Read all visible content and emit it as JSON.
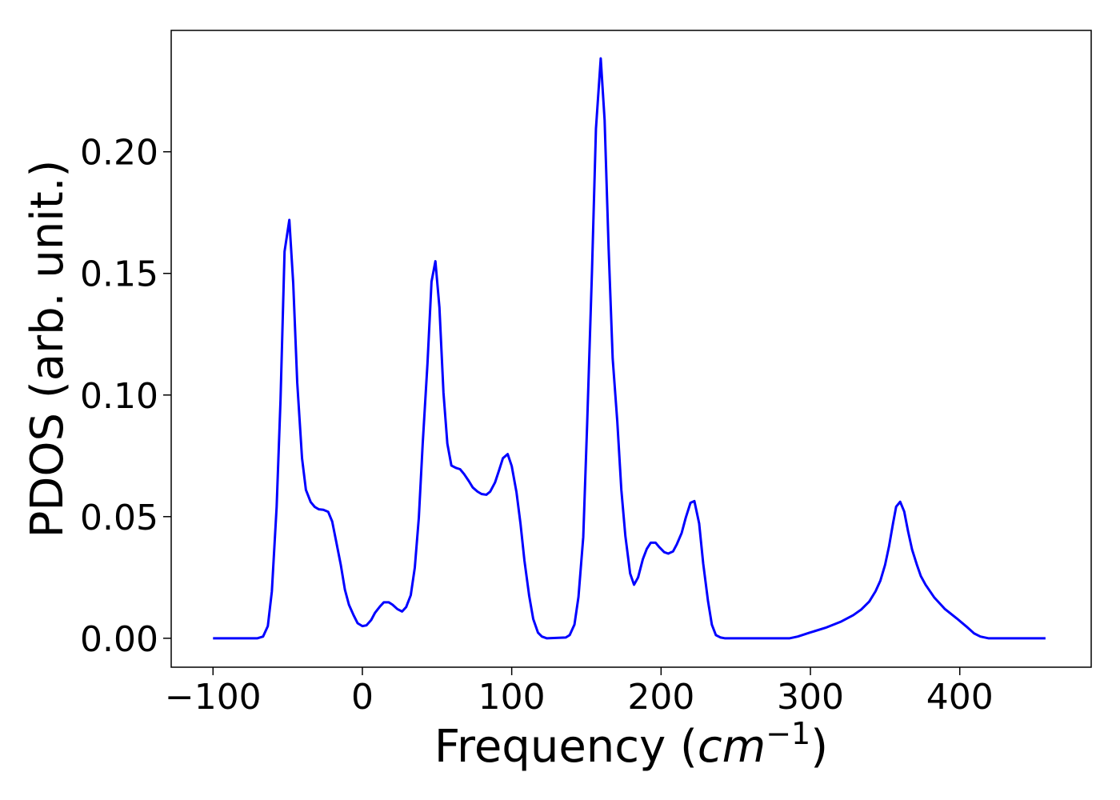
{
  "chart_data": {
    "type": "line",
    "xlabel": [
      "Frequency (",
      "cm",
      "−1",
      ")"
    ],
    "ylabel": "PDOS (arb. unit.)",
    "xlim": [
      -128,
      488
    ],
    "ylim": [
      -0.0119,
      0.2499
    ],
    "xticks": [
      {
        "value": -100,
        "label": "−100"
      },
      0,
      100,
      200,
      300,
      400
    ],
    "yticks": [
      {
        "value": 0,
        "label": "0.00"
      },
      {
        "value": 0.05,
        "label": "0.05"
      },
      {
        "value": 0.1,
        "label": "0.10"
      },
      {
        "value": 0.15,
        "label": "0.15"
      },
      {
        "value": 0.2,
        "label": "0.20"
      }
    ],
    "grid": false,
    "series": [
      {
        "color": "#0000ff",
        "x": [
          -100,
          -70.2,
          -66.5,
          -63.3,
          -60.6,
          -57.4,
          -54.8,
          -52.1,
          -48.9,
          -46.3,
          -43.6,
          -40.4,
          -37.8,
          -34.6,
          -31.9,
          -29.1,
          -26.1,
          -22.9,
          -20.2,
          -17.6,
          -14.4,
          -11.7,
          -9.0,
          -5.9,
          -3.2,
          0,
          2.7,
          5.9,
          8.5,
          11.7,
          14.4,
          17.6,
          20.2,
          23.4,
          26.6,
          29.3,
          32.4,
          35.1,
          37.8,
          40.4,
          43.6,
          46.3,
          48.9,
          51.6,
          54.3,
          56.9,
          59.6,
          62.8,
          65.4,
          68.1,
          71.3,
          73.9,
          77.1,
          79.8,
          83.0,
          85.6,
          88.8,
          91.5,
          94.1,
          97.3,
          100,
          103.2,
          105.9,
          108.5,
          111.7,
          114.4,
          117.6,
          120.2,
          123.4,
          136.2,
          138.8,
          142,
          144.7,
          147.9,
          150.5,
          153.7,
          156.4,
          159.6,
          162.2,
          164.9,
          167.6,
          170.7,
          173.4,
          176.1,
          179.3,
          181.9,
          184.6,
          187.8,
          190.4,
          193.1,
          196.3,
          198.9,
          202.1,
          204.8,
          208.0,
          210.6,
          213.8,
          216.5,
          219.7,
          222.3,
          225.5,
          228.2,
          231.4,
          234.0,
          236.7,
          239.9,
          242.6,
          286.2,
          291.5,
          299.5,
          310.1,
          320.7,
          328.7,
          334.0,
          339.4,
          343.6,
          346.8,
          350,
          352.7,
          355.3,
          357.4,
          360.1,
          362.8,
          365.4,
          368.1,
          371.3,
          373.9,
          377.1,
          383,
          389.9,
          397.9,
          404.3,
          409.6,
          413.8,
          419.1,
          457.4
        ],
        "values": [
          0,
          0,
          0.0007,
          0.005,
          0.0193,
          0.054,
          0.098,
          0.159,
          0.172,
          0.146,
          0.105,
          0.074,
          0.061,
          0.056,
          0.054,
          0.053,
          0.0528,
          0.052,
          0.048,
          0.04,
          0.03,
          0.02,
          0.0138,
          0.0095,
          0.0062,
          0.005,
          0.0053,
          0.0075,
          0.0105,
          0.013,
          0.0148,
          0.0148,
          0.0138,
          0.012,
          0.011,
          0.0128,
          0.0177,
          0.029,
          0.0495,
          0.08,
          0.113,
          0.1466,
          0.155,
          0.136,
          0.101,
          0.08,
          0.071,
          0.07,
          0.0695,
          0.0675,
          0.0646,
          0.062,
          0.0603,
          0.0593,
          0.059,
          0.0603,
          0.064,
          0.069,
          0.074,
          0.0757,
          0.0708,
          0.06,
          0.047,
          0.032,
          0.0174,
          0.0079,
          0.0023,
          0.0007,
          0,
          0.0003,
          0.0013,
          0.0056,
          0.017,
          0.0416,
          0.088,
          0.15,
          0.2095,
          0.2384,
          0.213,
          0.16,
          0.115,
          0.089,
          0.061,
          0.042,
          0.0266,
          0.022,
          0.025,
          0.0325,
          0.0367,
          0.0393,
          0.0393,
          0.0374,
          0.0354,
          0.0348,
          0.0357,
          0.0387,
          0.0433,
          0.0495,
          0.0557,
          0.0564,
          0.0472,
          0.0308,
          0.0154,
          0.0056,
          0.0013,
          0.0003,
          0,
          0,
          0.0007,
          0.0023,
          0.0043,
          0.0069,
          0.0095,
          0.0118,
          0.0151,
          0.0193,
          0.0236,
          0.0302,
          0.038,
          0.0472,
          0.0541,
          0.0561,
          0.0521,
          0.0439,
          0.0364,
          0.0302,
          0.0256,
          0.022,
          0.0167,
          0.0121,
          0.0082,
          0.0049,
          0.002,
          0.0007,
          0,
          0
        ]
      }
    ]
  }
}
